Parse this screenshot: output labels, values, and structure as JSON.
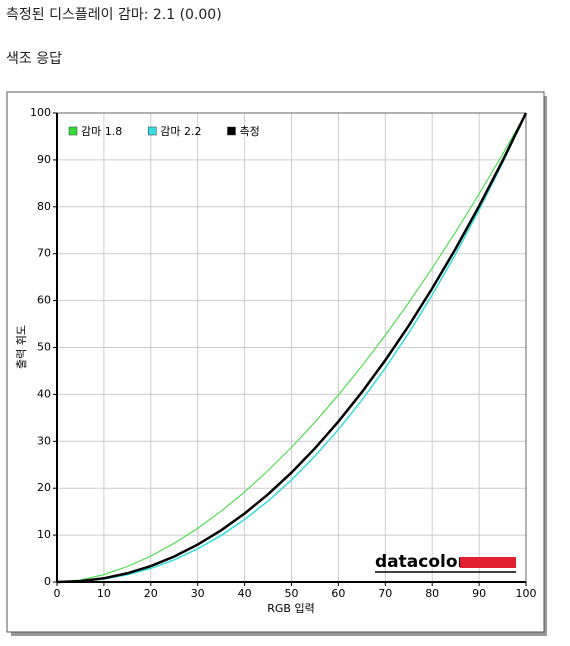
{
  "header": {
    "gamma": "측정된 디스플레이 감마: 2.1 (0.00)",
    "section": "색조 응답"
  },
  "chart_data": {
    "type": "line",
    "x_label": "RGB 입력",
    "y_label": "출력 휘도",
    "logo": "datacolor",
    "x": [
      0,
      5,
      10,
      15,
      20,
      25,
      30,
      35,
      40,
      45,
      50,
      55,
      60,
      65,
      70,
      75,
      80,
      85,
      90,
      95,
      100
    ],
    "series": [
      {
        "name": "감마 1.8",
        "color": "#33dd33",
        "width": 1,
        "values": [
          0,
          0.46,
          1.58,
          3.29,
          5.52,
          8.25,
          11.45,
          15.11,
          19.22,
          23.76,
          28.72,
          34.09,
          39.87,
          46.05,
          52.62,
          59.58,
          66.92,
          74.64,
          82.72,
          91.18,
          100
        ]
      },
      {
        "name": "감마 2.2",
        "color": "#33dddd",
        "width": 1.5,
        "values": [
          0,
          0.14,
          0.63,
          1.54,
          2.9,
          4.74,
          7.08,
          9.93,
          13.32,
          17.26,
          21.76,
          26.84,
          32.5,
          38.76,
          45.63,
          53.1,
          61.21,
          69.94,
          79.31,
          89.33,
          100
        ]
      },
      {
        "name": "측정",
        "color": "#000000",
        "width": 2.5,
        "values": [
          0,
          0.19,
          0.79,
          1.86,
          3.4,
          5.44,
          7.98,
          11.03,
          14.6,
          18.7,
          23.33,
          28.5,
          34.21,
          40.47,
          47.28,
          54.65,
          62.6,
          71.08,
          80.15,
          89.79,
          100
        ]
      }
    ],
    "xlim": [
      0,
      100
    ],
    "ylim": [
      0,
      100
    ],
    "xticks": [
      0,
      10,
      20,
      30,
      40,
      50,
      60,
      70,
      80,
      90,
      100
    ],
    "yticks": [
      0,
      10,
      20,
      30,
      40,
      50,
      60,
      70,
      80,
      90,
      100
    ],
    "grid": true,
    "legend": "top-left"
  }
}
